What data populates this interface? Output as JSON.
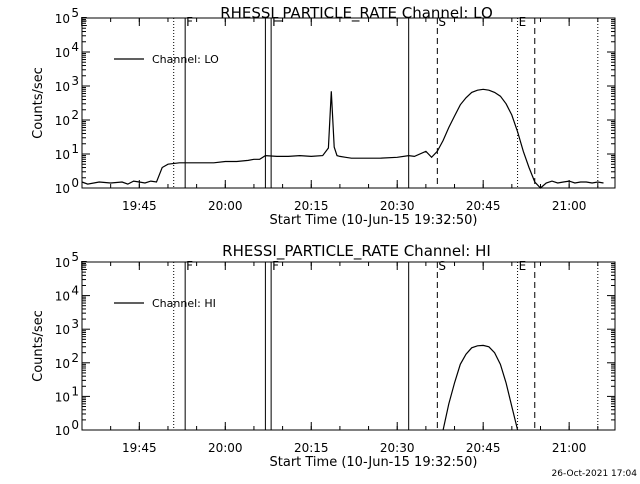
{
  "footer": {
    "timestamp": "26-Oct-2021 17:04"
  },
  "chart_data": [
    {
      "type": "line",
      "title": "RHESSI_PARTICLE_RATE Channel: LO",
      "xlabel": "Start Time (10-Jun-15 19:32:50)",
      "ylabel": "Counts/sec",
      "yscale": "log",
      "ylim": [
        1,
        100000
      ],
      "y_ticks": [
        {
          "v": 1,
          "b": "10",
          "e": "0"
        },
        {
          "v": 10,
          "b": "10",
          "e": "1"
        },
        {
          "v": 100,
          "b": "10",
          "e": "2"
        },
        {
          "v": 1000,
          "b": "10",
          "e": "3"
        },
        {
          "v": 10000,
          "b": "10",
          "e": "4"
        },
        {
          "v": 100000,
          "b": "10",
          "e": "5"
        }
      ],
      "xlim": [
        "19:35",
        "21:08"
      ],
      "x_ticks": [
        "19:45",
        "20:00",
        "20:15",
        "20:30",
        "20:45",
        "21:00"
      ],
      "legend": {
        "position": "top-left",
        "entries": [
          "Channel: LO"
        ]
      },
      "series": [
        {
          "name": "Channel: LO",
          "x": [
            "19:35",
            "19:36",
            "19:38",
            "19:40",
            "19:42",
            "19:43",
            "19:44",
            "19:45",
            "19:46",
            "19:47",
            "19:48",
            "19:49",
            "19:50",
            "19:52",
            "19:55",
            "19:58",
            "20:00",
            "20:02",
            "20:04",
            "20:05",
            "20:06",
            "20:07",
            "20:09",
            "20:11",
            "20:13",
            "20:15",
            "20:17",
            "20:18",
            "20:18:30",
            "20:19",
            "20:19:30",
            "20:20",
            "20:21",
            "20:22",
            "20:24",
            "20:27",
            "20:30",
            "20:32",
            "20:33",
            "20:35",
            "20:36",
            "20:37",
            "20:38",
            "20:39",
            "20:40",
            "20:41",
            "20:42",
            "20:43",
            "20:44",
            "20:45",
            "20:46",
            "20:47",
            "20:48",
            "20:49",
            "20:50",
            "20:51",
            "20:52",
            "20:53",
            "20:54",
            "20:55",
            "20:56",
            "20:57",
            "20:58",
            "20:59",
            "21:00",
            "21:01",
            "21:02",
            "21:03",
            "21:04",
            "21:05",
            "21:06"
          ],
          "y": [
            1.5,
            1.3,
            1.5,
            1.4,
            1.5,
            1.3,
            1.6,
            1.5,
            1.4,
            1.6,
            1.5,
            4.0,
            5.0,
            5.5,
            5.5,
            5.5,
            6.0,
            6.0,
            6.5,
            7.0,
            7.0,
            9.0,
            8.5,
            8.5,
            9.0,
            8.5,
            9.0,
            15,
            700,
            16,
            9.0,
            8.5,
            8.0,
            7.5,
            7.5,
            7.5,
            8.0,
            9.0,
            8.5,
            12,
            8.0,
            12,
            25,
            60,
            130,
            280,
            450,
            650,
            750,
            800,
            750,
            650,
            500,
            300,
            140,
            45,
            12,
            4,
            1.5,
            1.0,
            1.4,
            1.6,
            1.4,
            1.5,
            1.6,
            1.4,
            1.5,
            1.5,
            1.4,
            1.5,
            1.4
          ]
        }
      ],
      "markers": [
        {
          "time": "19:51",
          "style": "dotted",
          "label": ""
        },
        {
          "time": "19:53",
          "style": "solid",
          "label": "F"
        },
        {
          "time": "20:07",
          "style": "solid",
          "label": ""
        },
        {
          "time": "20:08",
          "style": "solid",
          "label": "F"
        },
        {
          "time": "20:32",
          "style": "solid",
          "label": ""
        },
        {
          "time": "20:37",
          "style": "dashed",
          "label": "S"
        },
        {
          "time": "20:51",
          "style": "dotted",
          "label": "E"
        },
        {
          "time": "20:54",
          "style": "dashed",
          "label": ""
        },
        {
          "time": "21:05",
          "style": "dotted",
          "label": ""
        }
      ],
      "corner_label": "E"
    },
    {
      "type": "line",
      "title": "RHESSI_PARTICLE_RATE Channel: HI",
      "xlabel": "Start Time (10-Jun-15 19:32:50)",
      "ylabel": "Counts/sec",
      "yscale": "log",
      "ylim": [
        1,
        100000
      ],
      "y_ticks": [
        {
          "v": 1,
          "b": "10",
          "e": "0"
        },
        {
          "v": 10,
          "b": "10",
          "e": "1"
        },
        {
          "v": 100,
          "b": "10",
          "e": "2"
        },
        {
          "v": 1000,
          "b": "10",
          "e": "3"
        },
        {
          "v": 10000,
          "b": "10",
          "e": "4"
        },
        {
          "v": 100000,
          "b": "10",
          "e": "5"
        }
      ],
      "xlim": [
        "19:35",
        "21:08"
      ],
      "x_ticks": [
        "19:45",
        "20:00",
        "20:15",
        "20:30",
        "20:45",
        "21:00"
      ],
      "legend": {
        "position": "top-left",
        "entries": [
          "Channel: HI"
        ]
      },
      "series": [
        {
          "name": "Channel: HI",
          "x": [
            "20:38",
            "20:39",
            "20:40",
            "20:41",
            "20:42",
            "20:43",
            "20:44",
            "20:45",
            "20:46",
            "20:47",
            "20:48",
            "20:49",
            "20:50",
            "20:51"
          ],
          "y": [
            1.0,
            6,
            25,
            90,
            180,
            280,
            320,
            330,
            300,
            200,
            90,
            25,
            5,
            1.0
          ]
        }
      ],
      "markers": [
        {
          "time": "19:51",
          "style": "dotted",
          "label": ""
        },
        {
          "time": "19:53",
          "style": "solid",
          "label": "F"
        },
        {
          "time": "20:07",
          "style": "solid",
          "label": ""
        },
        {
          "time": "20:08",
          "style": "solid",
          "label": "F"
        },
        {
          "time": "20:32",
          "style": "solid",
          "label": ""
        },
        {
          "time": "20:37",
          "style": "dashed",
          "label": "S"
        },
        {
          "time": "20:51",
          "style": "dotted",
          "label": "E"
        },
        {
          "time": "20:54",
          "style": "dashed",
          "label": ""
        },
        {
          "time": "21:05",
          "style": "dotted",
          "label": ""
        }
      ],
      "corner_label": "E"
    }
  ]
}
